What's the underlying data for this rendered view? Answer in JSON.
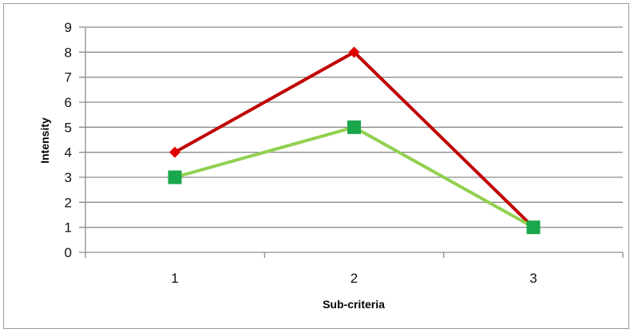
{
  "chart_data": {
    "type": "line",
    "title": "",
    "xlabel": "Sub-criteria",
    "ylabel": "Intensity",
    "categories": [
      "1",
      "2",
      "3"
    ],
    "ylim": [
      0,
      9
    ],
    "yticks": [
      "0",
      "1",
      "2",
      "3",
      "4",
      "5",
      "6",
      "7",
      "8",
      "9"
    ],
    "grid": true,
    "legend": "none",
    "series": [
      {
        "values": [
          4,
          8,
          1
        ],
        "color": "#c00000",
        "marker": "diamond"
      },
      {
        "values": [
          3,
          5,
          1
        ],
        "color": "#92d050",
        "markerColor": "#1aa64a",
        "marker": "square"
      }
    ]
  }
}
